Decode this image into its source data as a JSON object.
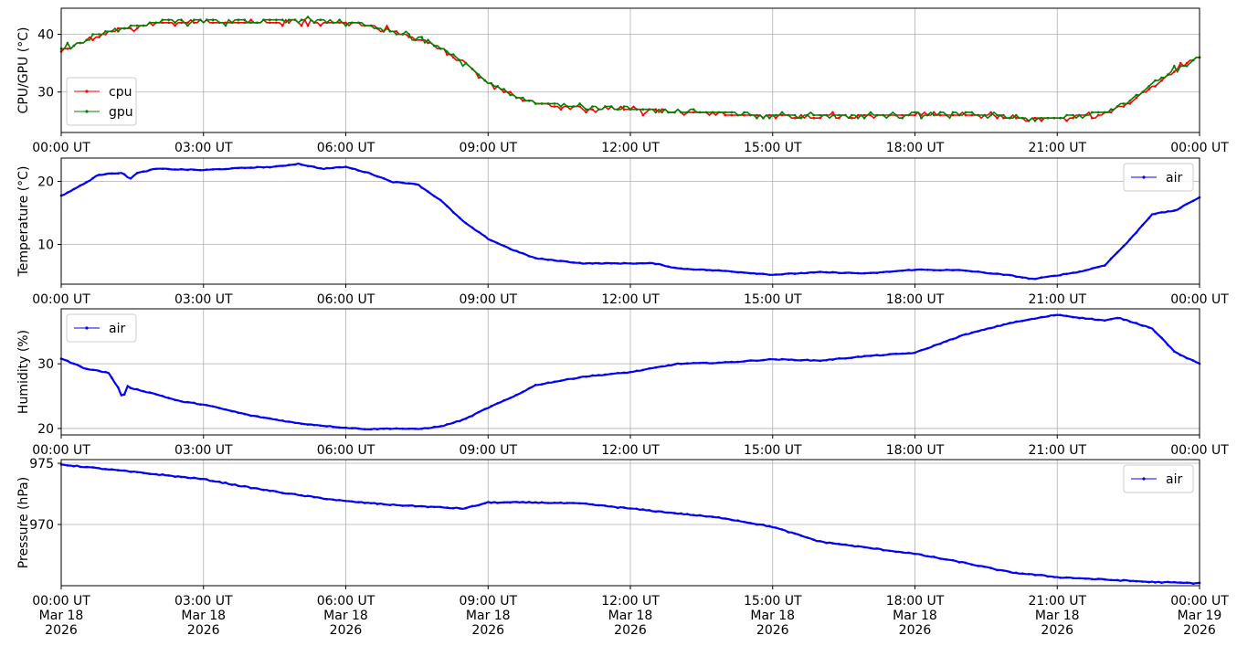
{
  "chart_data": [
    {
      "type": "line",
      "ylabel": "CPU/GPU (°C)",
      "x_tick_labels": [
        "00:00 UT",
        "03:00 UT",
        "06:00 UT",
        "09:00 UT",
        "12:00 UT",
        "15:00 UT",
        "18:00 UT",
        "21:00 UT",
        "00:00 UT"
      ],
      "x_tick_hours": [
        0,
        3,
        6,
        9,
        12,
        15,
        18,
        21,
        24
      ],
      "xlim_hours": [
        0,
        24
      ],
      "ylim": [
        23,
        44.5
      ],
      "y_ticks": [
        30,
        40
      ],
      "y_tick_labels": [
        "30",
        "40"
      ],
      "grid": true,
      "legend_position": "lower-left",
      "series": [
        {
          "name": "cpu",
          "color": "#ff0000",
          "marker": "dot",
          "x_hours": [
            0,
            0.5,
            1,
            1.5,
            2,
            3,
            4,
            5,
            6,
            6.5,
            7,
            7.5,
            8,
            8.5,
            9,
            9.5,
            10,
            11,
            12,
            13,
            14,
            15,
            16,
            17,
            18,
            19,
            20,
            20.5,
            21,
            21.5,
            22,
            22.5,
            23,
            23.5,
            24
          ],
          "values": [
            37,
            38.8,
            40.5,
            41,
            42,
            42.2,
            42,
            42.3,
            42,
            41.5,
            40.2,
            39.3,
            37.5,
            35,
            31.5,
            29.5,
            28,
            27.2,
            27,
            26.6,
            26.3,
            25.8,
            25.7,
            25.9,
            26.1,
            26.1,
            25.7,
            25.2,
            25.3,
            25.8,
            26.5,
            28,
            31,
            34,
            36
          ]
        },
        {
          "name": "gpu",
          "color": "#008000",
          "marker": "dot",
          "x_hours": [
            0,
            0.5,
            1,
            1.5,
            2,
            3,
            4,
            5,
            6,
            6.5,
            7,
            7.5,
            8,
            8.5,
            9,
            9.5,
            10,
            11,
            12,
            13,
            14,
            15,
            16,
            17,
            18,
            19,
            20,
            20.5,
            21,
            21.5,
            22,
            22.5,
            23,
            23.5,
            24
          ],
          "values": [
            37.3,
            39,
            40.7,
            41.2,
            42.2,
            42.4,
            42.3,
            42.5,
            42.1,
            41.6,
            40.3,
            39.5,
            37.6,
            35.2,
            31.7,
            29.6,
            28.2,
            27.3,
            27.1,
            26.8,
            26.4,
            26,
            25.9,
            26,
            26.2,
            26.2,
            25.8,
            25.3,
            25.4,
            25.9,
            26.6,
            28.2,
            31.2,
            34.2,
            36.2
          ]
        }
      ]
    },
    {
      "type": "line",
      "ylabel": "Temperature (°C)",
      "x_tick_labels": [
        "00:00 UT",
        "03:00 UT",
        "06:00 UT",
        "09:00 UT",
        "12:00 UT",
        "15:00 UT",
        "18:00 UT",
        "21:00 UT",
        "00:00 UT"
      ],
      "x_tick_hours": [
        0,
        3,
        6,
        9,
        12,
        15,
        18,
        21,
        24
      ],
      "xlim_hours": [
        0,
        24
      ],
      "ylim": [
        3.7,
        23.7
      ],
      "y_ticks": [
        10,
        20
      ],
      "y_tick_labels": [
        "10",
        "20"
      ],
      "grid": true,
      "legend_position": "upper-right",
      "series": [
        {
          "name": "air",
          "color": "#0000ff",
          "marker": "dot",
          "x_hours": [
            0,
            0.5,
            0.75,
            1,
            1.3,
            1.45,
            1.6,
            2,
            3,
            4,
            4.5,
            5,
            5.5,
            6,
            6.5,
            7,
            7.5,
            8,
            8.5,
            9,
            9.5,
            10,
            11,
            12,
            12.5,
            13,
            14,
            15,
            16,
            17,
            18,
            19,
            20,
            20.5,
            21,
            21.5,
            22,
            22.5,
            23,
            23.5,
            24
          ],
          "values": [
            17.7,
            19.7,
            20.9,
            21.3,
            21.3,
            20.4,
            21.3,
            22,
            21.8,
            22.2,
            22.3,
            22.8,
            22,
            22.3,
            21.3,
            19.9,
            19.6,
            17,
            13.5,
            10.9,
            9.2,
            7.8,
            7,
            7,
            7,
            6.2,
            5.8,
            5.2,
            5.6,
            5.4,
            6,
            5.9,
            5.1,
            4.5,
            5.1,
            5.7,
            6.7,
            10.5,
            14.8,
            15.4,
            17.5
          ]
        }
      ]
    },
    {
      "type": "line",
      "ylabel": "Humidity (%)",
      "x_tick_labels": [
        "00:00 UT",
        "03:00 UT",
        "06:00 UT",
        "09:00 UT",
        "12:00 UT",
        "15:00 UT",
        "18:00 UT",
        "21:00 UT",
        "00:00 UT"
      ],
      "x_tick_hours": [
        0,
        3,
        6,
        9,
        12,
        15,
        18,
        21,
        24
      ],
      "xlim_hours": [
        0,
        24
      ],
      "ylim": [
        19,
        38.5
      ],
      "y_ticks": [
        20,
        30
      ],
      "y_tick_labels": [
        "20",
        "30"
      ],
      "grid": true,
      "legend_position": "upper-left",
      "series": [
        {
          "name": "air",
          "color": "#0000ff",
          "marker": "dot",
          "x_hours": [
            0,
            0.5,
            1,
            1.2,
            1.3,
            1.4,
            1.5,
            2,
            2.5,
            3,
            4,
            5,
            6,
            6.5,
            7,
            7.5,
            8,
            8.5,
            9,
            9.5,
            10,
            11,
            12,
            13,
            14,
            15,
            16,
            17,
            18,
            19,
            20,
            21,
            21.5,
            22,
            22.3,
            23,
            23.5,
            24
          ],
          "values": [
            30.8,
            29.3,
            28.6,
            26.3,
            24.6,
            26.5,
            26.2,
            25.3,
            24.2,
            23.7,
            22,
            20.8,
            20.1,
            19.9,
            20,
            19.9,
            20.3,
            21.4,
            23.2,
            24.8,
            26.7,
            28,
            28.7,
            30,
            30.2,
            30.7,
            30.5,
            31.2,
            31.7,
            34.4,
            36.3,
            37.6,
            37.1,
            36.7,
            37.1,
            35.5,
            31.7,
            30
          ]
        }
      ]
    },
    {
      "type": "line",
      "ylabel": "Pressure (hPa)",
      "x_tick_labels": [
        "00:00 UT\nMar 18\n2026",
        "03:00 UT\nMar 18\n2026",
        "06:00 UT\nMar 18\n2026",
        "09:00 UT\nMar 18\n2026",
        "12:00 UT\nMar 18\n2026",
        "15:00 UT\nMar 18\n2026",
        "18:00 UT\nMar 18\n2026",
        "21:00 UT\nMar 18\n2026",
        "00:00 UT\nMar 19\n2026"
      ],
      "x_tick_hours": [
        0,
        3,
        6,
        9,
        12,
        15,
        18,
        21,
        24
      ],
      "xlim_hours": [
        0,
        24
      ],
      "ylim": [
        965,
        975.3
      ],
      "y_ticks": [
        970,
        975
      ],
      "y_tick_labels": [
        "970",
        "975"
      ],
      "grid": true,
      "legend_position": "upper-right",
      "series": [
        {
          "name": "air",
          "color": "#0000ff",
          "marker": "dot",
          "x_hours": [
            0,
            1,
            2,
            3,
            4,
            5,
            6,
            7,
            8,
            8.5,
            9,
            10,
            11,
            12,
            13,
            14,
            15,
            16,
            17,
            18,
            19,
            20,
            21,
            22,
            23,
            24
          ],
          "values": [
            974.9,
            974.5,
            974.1,
            973.7,
            973,
            972.4,
            971.9,
            971.6,
            971.4,
            971.3,
            971.8,
            971.8,
            971.7,
            971.3,
            970.9,
            970.5,
            969.8,
            968.6,
            968.1,
            967.6,
            966.9,
            966.1,
            965.7,
            965.5,
            965.3,
            965.2
          ]
        }
      ]
    }
  ]
}
